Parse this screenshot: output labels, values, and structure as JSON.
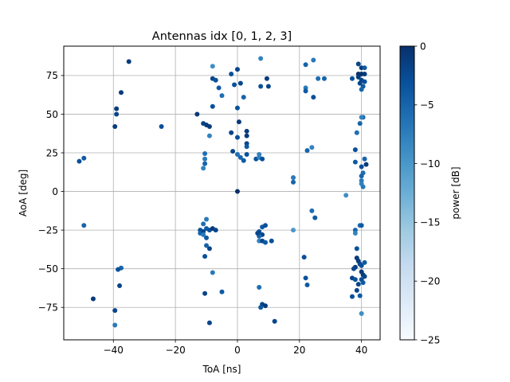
{
  "chart_data": {
    "type": "scatter",
    "title": "Antennas idx [0, 1, 2, 3]",
    "xlabel": "ToA [ns]",
    "ylabel": "AoA [deg]",
    "xlim": [
      -56,
      46
    ],
    "ylim": [
      -96,
      94
    ],
    "xticks": [
      -40,
      -20,
      0,
      20,
      40
    ],
    "xtick_labels": [
      "−40",
      "−20",
      "0",
      "20",
      "40"
    ],
    "yticks": [
      -75,
      -50,
      -25,
      0,
      25,
      50,
      75
    ],
    "ytick_labels": [
      "−75",
      "−50",
      "−25",
      "0",
      "25",
      "50",
      "75"
    ],
    "grid": true,
    "colormap": "Blues",
    "colorbar": {
      "label": "power [dB]",
      "range": [
        -25,
        0
      ],
      "ticks": [
        0,
        -5,
        -10,
        -15,
        -20,
        -25
      ],
      "tick_labels": [
        "0",
        "−5",
        "−10",
        "−15",
        "−20",
        "−25"
      ]
    },
    "points": [
      {
        "x": -35,
        "y": 84,
        "p": -1
      },
      {
        "x": -37.5,
        "y": 64,
        "p": -1
      },
      {
        "x": -39,
        "y": 53.5,
        "p": -1
      },
      {
        "x": -39,
        "y": 50,
        "p": -2
      },
      {
        "x": -39.5,
        "y": 42,
        "p": -1
      },
      {
        "x": -49.5,
        "y": 21.5,
        "p": -4
      },
      {
        "x": -51,
        "y": 19.5,
        "p": -3
      },
      {
        "x": -24.5,
        "y": 42,
        "p": -3
      },
      {
        "x": -49.5,
        "y": -22,
        "p": -5
      },
      {
        "x": -37.5,
        "y": -49.5,
        "p": -5
      },
      {
        "x": -38.5,
        "y": -50.5,
        "p": -3
      },
      {
        "x": -38,
        "y": -61,
        "p": -2
      },
      {
        "x": -46.5,
        "y": -69.5,
        "p": -1
      },
      {
        "x": -39.5,
        "y": -77,
        "p": -2
      },
      {
        "x": -39.5,
        "y": -86.5,
        "p": -7
      },
      {
        "x": -13,
        "y": 50,
        "p": -1
      },
      {
        "x": -11,
        "y": 44,
        "p": -2
      },
      {
        "x": -10,
        "y": 43,
        "p": -1
      },
      {
        "x": -9,
        "y": 42,
        "p": -1
      },
      {
        "x": -9,
        "y": 36,
        "p": -8
      },
      {
        "x": -10.5,
        "y": 24.5,
        "p": -6
      },
      {
        "x": -10.5,
        "y": 21,
        "p": -7
      },
      {
        "x": -10.5,
        "y": 18,
        "p": -5
      },
      {
        "x": -11,
        "y": 15,
        "p": -8
      },
      {
        "x": -8,
        "y": 81,
        "p": -9
      },
      {
        "x": -8,
        "y": 73,
        "p": -2
      },
      {
        "x": -7,
        "y": 72,
        "p": -3
      },
      {
        "x": -6,
        "y": 67,
        "p": -4
      },
      {
        "x": -5,
        "y": 62,
        "p": -6
      },
      {
        "x": -8,
        "y": 55,
        "p": -3
      },
      {
        "x": -2,
        "y": 76,
        "p": -3
      },
      {
        "x": 0,
        "y": 79,
        "p": -2
      },
      {
        "x": -1,
        "y": 69,
        "p": -3
      },
      {
        "x": 1,
        "y": 70,
        "p": -2
      },
      {
        "x": 2,
        "y": 61,
        "p": -5
      },
      {
        "x": 0,
        "y": 54,
        "p": -3
      },
      {
        "x": 0.5,
        "y": 45,
        "p": -1
      },
      {
        "x": -2,
        "y": 38,
        "p": -2
      },
      {
        "x": 3,
        "y": 39,
        "p": -1
      },
      {
        "x": 3,
        "y": 36,
        "p": -1
      },
      {
        "x": 0,
        "y": 35,
        "p": -3
      },
      {
        "x": 3,
        "y": 31,
        "p": -2
      },
      {
        "x": 3,
        "y": 29,
        "p": -4
      },
      {
        "x": -1.5,
        "y": 26,
        "p": -2
      },
      {
        "x": 0,
        "y": 24,
        "p": -6
      },
      {
        "x": 1,
        "y": 22,
        "p": -5
      },
      {
        "x": 2,
        "y": 20,
        "p": -4
      },
      {
        "x": 3,
        "y": 24,
        "p": -3
      },
      {
        "x": 6,
        "y": 21,
        "p": -3
      },
      {
        "x": 7,
        "y": 24,
        "p": -8
      },
      {
        "x": 7,
        "y": 22,
        "p": -8
      },
      {
        "x": 8,
        "y": 21,
        "p": -3
      },
      {
        "x": 0,
        "y": 0,
        "p": 0
      },
      {
        "x": 7.5,
        "y": 86,
        "p": -8
      },
      {
        "x": 9.5,
        "y": 73,
        "p": -1
      },
      {
        "x": 7.5,
        "y": 68,
        "p": -3
      },
      {
        "x": 10,
        "y": 68,
        "p": -2
      },
      {
        "x": -10,
        "y": -18,
        "p": -7
      },
      {
        "x": -11,
        "y": -21,
        "p": -6
      },
      {
        "x": -10,
        "y": -24,
        "p": -4
      },
      {
        "x": -12,
        "y": -25,
        "p": -3
      },
      {
        "x": -12,
        "y": -27,
        "p": -5
      },
      {
        "x": -11,
        "y": -26,
        "p": -2
      },
      {
        "x": -9,
        "y": -25,
        "p": -3
      },
      {
        "x": -8,
        "y": -24,
        "p": -1
      },
      {
        "x": -7,
        "y": -25,
        "p": -2
      },
      {
        "x": -11,
        "y": -28,
        "p": -7
      },
      {
        "x": -10,
        "y": -30,
        "p": -4
      },
      {
        "x": -10,
        "y": -35,
        "p": -5
      },
      {
        "x": -9,
        "y": -37,
        "p": -2
      },
      {
        "x": -10.5,
        "y": -42,
        "p": -3
      },
      {
        "x": -8,
        "y": -52.5,
        "p": -7
      },
      {
        "x": -10.5,
        "y": -66,
        "p": -2
      },
      {
        "x": -5,
        "y": -65,
        "p": -4
      },
      {
        "x": -9,
        "y": -85,
        "p": -2
      },
      {
        "x": 7,
        "y": -62,
        "p": -6
      },
      {
        "x": 7,
        "y": -32,
        "p": -8
      },
      {
        "x": 8,
        "y": -23,
        "p": -4
      },
      {
        "x": 9,
        "y": -22,
        "p": -3
      },
      {
        "x": 7,
        "y": -26,
        "p": -3
      },
      {
        "x": 8,
        "y": -28,
        "p": -2
      },
      {
        "x": 7,
        "y": -29,
        "p": -5
      },
      {
        "x": 6.5,
        "y": -27,
        "p": -2
      },
      {
        "x": 8,
        "y": -32,
        "p": -2
      },
      {
        "x": 9,
        "y": -33,
        "p": -4
      },
      {
        "x": 11,
        "y": -32,
        "p": -3
      },
      {
        "x": 8,
        "y": -73,
        "p": -2
      },
      {
        "x": 7.5,
        "y": -75,
        "p": -4
      },
      {
        "x": 9,
        "y": -74,
        "p": -1
      },
      {
        "x": 12,
        "y": -84,
        "p": -2
      },
      {
        "x": 18,
        "y": 9,
        "p": -7
      },
      {
        "x": 18,
        "y": 6,
        "p": -5
      },
      {
        "x": 18,
        "y": -25,
        "p": -10
      },
      {
        "x": 22,
        "y": 82,
        "p": -5
      },
      {
        "x": 24.5,
        "y": 85,
        "p": -7
      },
      {
        "x": 22,
        "y": 67,
        "p": -7
      },
      {
        "x": 22,
        "y": 65,
        "p": -4
      },
      {
        "x": 26,
        "y": 73,
        "p": -6
      },
      {
        "x": 28,
        "y": 73,
        "p": -5
      },
      {
        "x": 24.5,
        "y": 61,
        "p": -3
      },
      {
        "x": 24,
        "y": 28.5,
        "p": -8
      },
      {
        "x": 22.5,
        "y": 26.5,
        "p": -5
      },
      {
        "x": 24,
        "y": -12.5,
        "p": -6
      },
      {
        "x": 25,
        "y": -17,
        "p": -4
      },
      {
        "x": 21.5,
        "y": -42.5,
        "p": -3
      },
      {
        "x": 22,
        "y": -56,
        "p": -3
      },
      {
        "x": 22.5,
        "y": -60.5,
        "p": -4
      },
      {
        "x": 35,
        "y": -2.5,
        "p": -9
      },
      {
        "x": 39,
        "y": 82.5,
        "p": -2
      },
      {
        "x": 40,
        "y": 80,
        "p": -1
      },
      {
        "x": 41,
        "y": 80,
        "p": -4
      },
      {
        "x": 37,
        "y": 73,
        "p": -3
      },
      {
        "x": 39,
        "y": 76,
        "p": 0
      },
      {
        "x": 40,
        "y": 76,
        "p": 0
      },
      {
        "x": 41,
        "y": 76,
        "p": -1
      },
      {
        "x": 39,
        "y": 74,
        "p": -1
      },
      {
        "x": 40,
        "y": 72,
        "p": -2
      },
      {
        "x": 41,
        "y": 71,
        "p": -3
      },
      {
        "x": 39.5,
        "y": 70,
        "p": -2
      },
      {
        "x": 40.5,
        "y": 68,
        "p": -4
      },
      {
        "x": 40,
        "y": 66,
        "p": -5
      },
      {
        "x": 40.5,
        "y": 48,
        "p": -5
      },
      {
        "x": 40,
        "y": 48,
        "p": -8
      },
      {
        "x": 39.5,
        "y": 44,
        "p": -5
      },
      {
        "x": 38.5,
        "y": 38,
        "p": -6
      },
      {
        "x": 38,
        "y": 27,
        "p": -3
      },
      {
        "x": 41,
        "y": 21,
        "p": -5
      },
      {
        "x": 41.5,
        "y": 17.5,
        "p": -1
      },
      {
        "x": 38,
        "y": 19,
        "p": -4
      },
      {
        "x": 40,
        "y": 16,
        "p": -3
      },
      {
        "x": 40.5,
        "y": 12,
        "p": -6
      },
      {
        "x": 40,
        "y": 10,
        "p": -5
      },
      {
        "x": 40,
        "y": 7,
        "p": -7
      },
      {
        "x": 40,
        "y": 5,
        "p": -8
      },
      {
        "x": 40.5,
        "y": 3,
        "p": -7
      },
      {
        "x": 39.5,
        "y": -22,
        "p": -6
      },
      {
        "x": 40,
        "y": -22,
        "p": -4
      },
      {
        "x": 38,
        "y": -25,
        "p": -5
      },
      {
        "x": 38,
        "y": -27,
        "p": -8
      },
      {
        "x": 38.5,
        "y": -37,
        "p": -3
      },
      {
        "x": 38.5,
        "y": -43,
        "p": -1
      },
      {
        "x": 39,
        "y": -45,
        "p": -1
      },
      {
        "x": 39.5,
        "y": -47,
        "p": -2
      },
      {
        "x": 40,
        "y": -48,
        "p": -3
      },
      {
        "x": 41,
        "y": -46,
        "p": -4
      },
      {
        "x": 38,
        "y": -49,
        "p": -1
      },
      {
        "x": 37.5,
        "y": -50,
        "p": -2
      },
      {
        "x": 40,
        "y": -52,
        "p": -1
      },
      {
        "x": 40.5,
        "y": -54,
        "p": -1
      },
      {
        "x": 41,
        "y": -55,
        "p": -2
      },
      {
        "x": 40,
        "y": -57,
        "p": -3
      },
      {
        "x": 40.5,
        "y": -59,
        "p": -4
      },
      {
        "x": 37,
        "y": -56,
        "p": -2
      },
      {
        "x": 38,
        "y": -57,
        "p": -3
      },
      {
        "x": 39,
        "y": -60,
        "p": -2
      },
      {
        "x": 38.5,
        "y": -64,
        "p": -2
      },
      {
        "x": 37,
        "y": -68,
        "p": -3
      },
      {
        "x": 39.5,
        "y": -67.5,
        "p": -4
      },
      {
        "x": 40,
        "y": -79,
        "p": -9
      }
    ]
  }
}
